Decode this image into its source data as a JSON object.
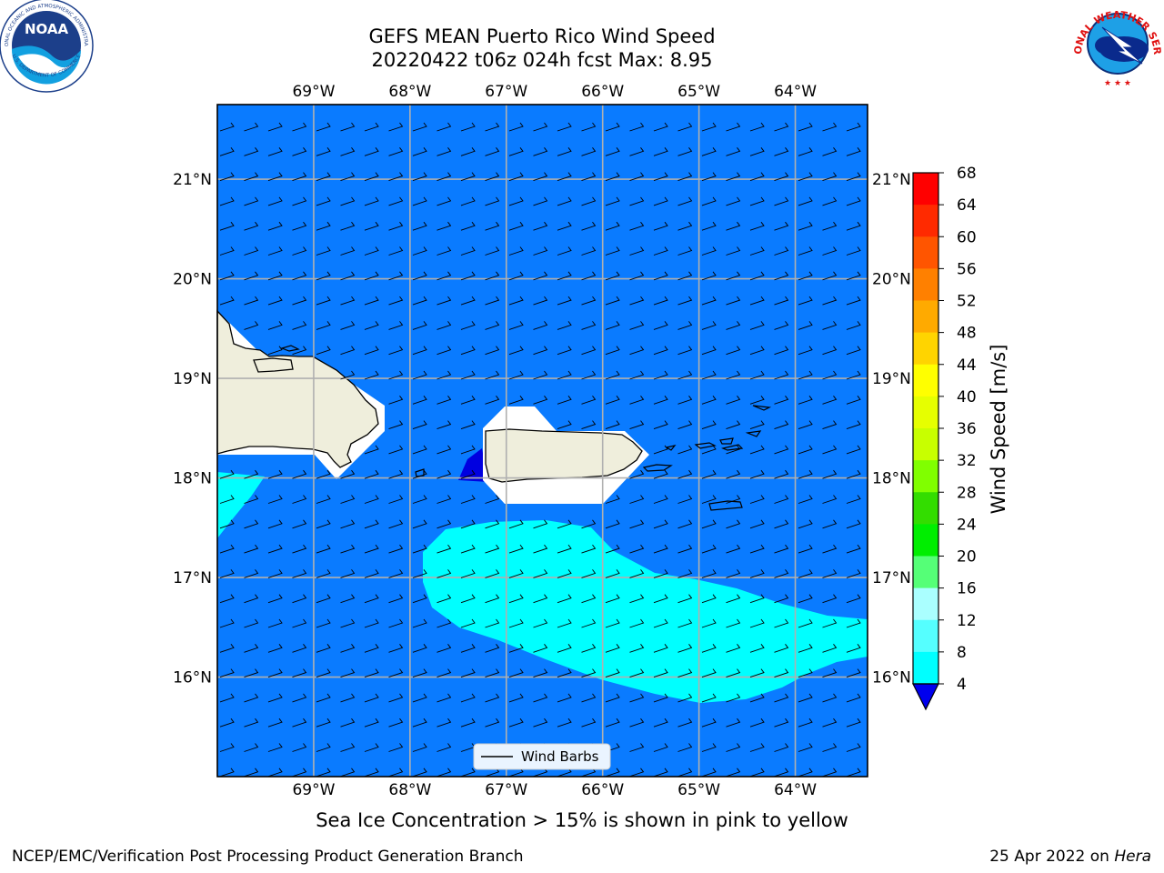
{
  "title": {
    "line1": "GEFS MEAN Puerto Rico Wind Speed",
    "line2": "20220422 t06z 024h fcst   Max: 8.95"
  },
  "map": {
    "lon_labels": [
      "69°W",
      "68°W",
      "67°W",
      "66°W",
      "65°W",
      "64°W"
    ],
    "lat_labels": [
      "21°N",
      "20°N",
      "19°N",
      "18°N",
      "17°N",
      "16°N"
    ],
    "lon_range": [
      -70.0,
      -63.25
    ],
    "lat_range": [
      15.0,
      21.75
    ],
    "legend_label": "Wind Barbs",
    "colors": {
      "ocean": "#0a7bff",
      "land": "#efeedc",
      "cyan_band": "#00ffff",
      "dark_blue": "#0000e0",
      "grid": "#b0b0b0"
    }
  },
  "colorbar": {
    "label": "Wind Speed [m/s]",
    "ticks": [
      "68",
      "64",
      "60",
      "56",
      "52",
      "48",
      "44",
      "40",
      "36",
      "32",
      "28",
      "24",
      "20",
      "16",
      "12",
      "8",
      "4"
    ],
    "colors": [
      "#ff0000",
      "#ff2a00",
      "#ff5500",
      "#ff8000",
      "#ffaa00",
      "#ffd400",
      "#ffff00",
      "#e6ff00",
      "#c8ff00",
      "#80ff00",
      "#33dd00",
      "#00ee00",
      "#55ff77",
      "#aaffff",
      "#55ffff",
      "#00ffff",
      "#0a7bff"
    ],
    "under_color": "#0000ee"
  },
  "caption": "Sea Ice Concentration > 15% is shown in pink to yellow",
  "footer": {
    "left": "NCEP/EMC/Verification Post Processing Product Generation Branch",
    "date": "25 Apr 2022 on ",
    "host": "Hera"
  },
  "logos": {
    "noara_text": "NOAA",
    "noaa_ring": "NATIONAL OCEANIC AND ATMOSPHERIC ADMINISTRATION",
    "noaa_ring_bottom": "U.S. DEPARTMENT OF COMMERCE",
    "nws_ring": "NATIONAL WEATHER SERVICE"
  }
}
